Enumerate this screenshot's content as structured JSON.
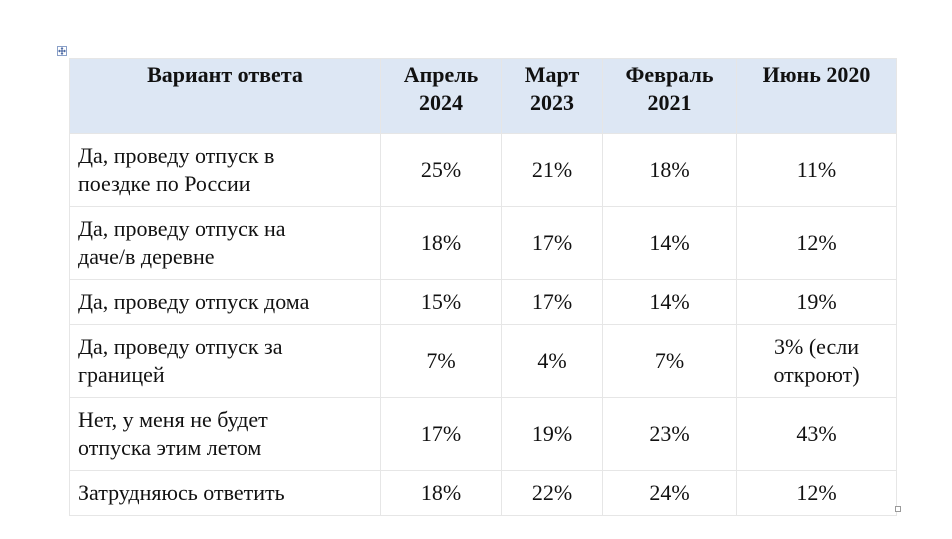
{
  "table": {
    "headers": [
      [
        "Вариант ответа"
      ],
      [
        "Апрель",
        "2024"
      ],
      [
        "Март",
        "2023"
      ],
      [
        "Февраль",
        "2021"
      ],
      [
        "Июнь 2020"
      ]
    ],
    "rows": [
      {
        "label": [
          "Да, проведу отпуск в",
          "поездке по России"
        ],
        "values": [
          [
            "25%"
          ],
          [
            "21%"
          ],
          [
            "18%"
          ],
          [
            "11%"
          ]
        ]
      },
      {
        "label": [
          "Да, проведу отпуск на",
          "даче/в деревне"
        ],
        "values": [
          [
            "18%"
          ],
          [
            "17%"
          ],
          [
            "14%"
          ],
          [
            "12%"
          ]
        ]
      },
      {
        "label": [
          "Да, проведу отпуск дома"
        ],
        "values": [
          [
            "15%"
          ],
          [
            "17%"
          ],
          [
            "14%"
          ],
          [
            "19%"
          ]
        ]
      },
      {
        "label": [
          "Да, проведу отпуск за",
          "границей"
        ],
        "values": [
          [
            "7%"
          ],
          [
            "4%"
          ],
          [
            "7%"
          ],
          [
            "3% (если",
            "откроют)"
          ]
        ]
      },
      {
        "label": [
          "Нет, у меня не будет",
          "отпуска этим летом"
        ],
        "values": [
          [
            "17%"
          ],
          [
            "19%"
          ],
          [
            "23%"
          ],
          [
            "43%"
          ]
        ]
      },
      {
        "label": [
          "Затрудняюсь ответить"
        ],
        "values": [
          [
            "18%"
          ],
          [
            "22%"
          ],
          [
            "24%"
          ],
          [
            "12%"
          ]
        ]
      }
    ]
  },
  "icons": {
    "move_handle": "move-arrows-icon",
    "resize_handle": "resize-square-icon"
  },
  "colors": {
    "header_background": "#dde7f4",
    "grid_lines": "#e6e6e6"
  }
}
